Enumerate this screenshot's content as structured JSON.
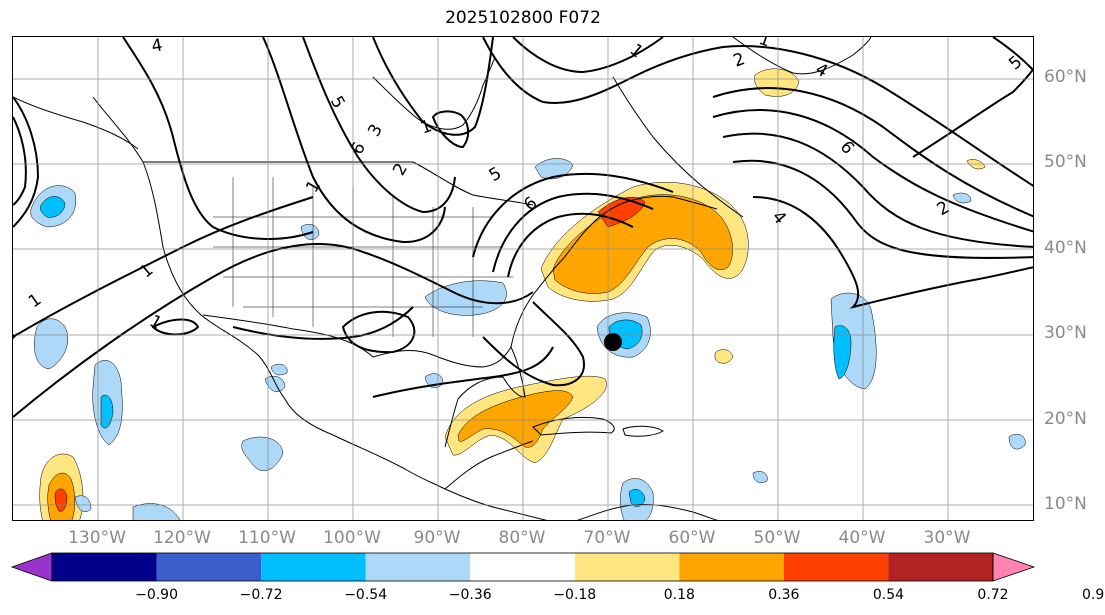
{
  "title": "2025102800 F072",
  "lat_labels": [
    "60°N",
    "50°N",
    "40°N",
    "30°N",
    "20°N",
    "10°N"
  ],
  "lon_labels": [
    "130°W",
    "120°W",
    "110°W",
    "100°W",
    "90°W",
    "80°W",
    "70°W",
    "60°W",
    "50°W",
    "40°W",
    "30°W"
  ],
  "contour_labels": [
    "4",
    "1",
    "1",
    "1",
    "1",
    "5",
    "1",
    "3",
    "6",
    "1",
    "2",
    "5",
    "6",
    "1",
    "2",
    "4",
    "6",
    "4",
    "2",
    "5",
    "1"
  ],
  "colorbar": {
    "ticks": [
      "−0.90",
      "−0.72",
      "−0.54",
      "−0.36",
      "−0.18",
      "0.18",
      "0.36",
      "0.54",
      "0.72",
      "0.90"
    ],
    "colors": [
      "#9a33cc",
      "#00008b",
      "#3a5fcd",
      "#00bfff",
      "#add8f7",
      "#ffffff",
      "#ffe680",
      "#ffa500",
      "#ff4000",
      "#b22222",
      "#ff85b0"
    ]
  },
  "marker": "black-dot"
}
